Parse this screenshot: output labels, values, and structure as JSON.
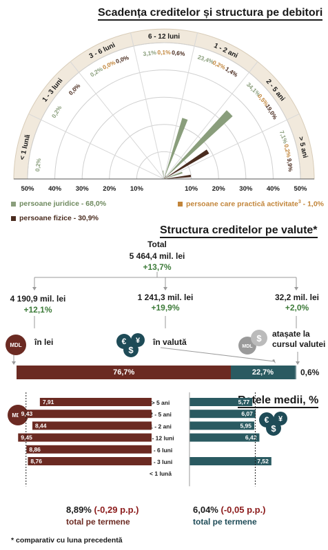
{
  "colors": {
    "green": "#8a9e7c",
    "orange": "#c2853a",
    "dark": "#4a2c1f",
    "mdl_red": "#6b2a22",
    "teal": "#2a5a61",
    "grey": "#9a9a9a",
    "beige": "#f1e9dc"
  },
  "section1": {
    "title": "Scadența creditelor și structura pe debitori",
    "legend": {
      "juridice": "persoane juridice - 68,0%",
      "activitate_prefix": "persoane care practică activitate",
      "activitate_sup": "3",
      "activitate_suffix": " - 1,0%",
      "fizice": "persoane fizice - 30,9%"
    },
    "axis_left": [
      "50%",
      "40%",
      "30%",
      "20%",
      "10%"
    ],
    "axis_right": [
      "10%",
      "20%",
      "30%",
      "40%",
      "50%"
    ]
  },
  "chart_data": [
    {
      "type": "polar-bar",
      "title": "Scadența creditelor și structura pe debitori",
      "categories": [
        "< 1 lună",
        "1 - 3 luni",
        "3 - 6 luni",
        "6 - 12 luni",
        "1 - 2 ani",
        "2 - 5 ani",
        "> 5 ani"
      ],
      "radial_range": [
        0,
        50
      ],
      "series": [
        {
          "name": "persoane juridice - 68,0%",
          "values": [
            0.2,
            0.2,
            0.2,
            3.1,
            23.4,
            34.1,
            7.1
          ],
          "labels": [
            "0,2%",
            "0,2%",
            "0,2%",
            "3,1%",
            "23,4%",
            "34,1%",
            "7,1%"
          ]
        },
        {
          "name": "persoane care practică activitate - 1,0%",
          "values": [
            0,
            0,
            0.0,
            0.1,
            0.2,
            0.5,
            0.2
          ],
          "labels": [
            "",
            "",
            "0,0%",
            "0,1%",
            "0,2%",
            "0,5%",
            "0,2%"
          ]
        },
        {
          "name": "persoane fizice - 30,9%",
          "values": [
            0,
            0.0,
            0.0,
            0.6,
            1.4,
            19.0,
            9.9
          ],
          "labels": [
            "",
            "0,0%",
            "0,0%",
            "0,6%",
            "1,4%",
            "19,0%",
            "9,9%"
          ]
        }
      ]
    },
    {
      "type": "bar",
      "title": "Structura creditelor pe valute*",
      "categories": [
        "în lei",
        "în valută",
        "atașate la cursul valutei"
      ],
      "values": [
        76.7,
        22.7,
        0.6
      ],
      "labels": [
        "76,7%",
        "22,7%",
        "0,6%"
      ]
    },
    {
      "type": "bar",
      "title": "Ratele medii, %",
      "categories": [
        "> 5 ani",
        "2 - 5 ani",
        "1 - 2 ani",
        "6 - 12 luni",
        "3 - 6 luni",
        "1 - 3 luni",
        "< 1 lună"
      ],
      "series": [
        {
          "name": "MDL",
          "values": [
            7.91,
            9.43,
            8.44,
            9.45,
            8.86,
            8.76,
            null
          ],
          "labels": [
            "7,91",
            "9,43",
            "8,44",
            "9,45",
            "8,86",
            "8,76",
            ""
          ]
        },
        {
          "name": "valută",
          "values": [
            5.77,
            6.07,
            5.95,
            6.42,
            null,
            7.52,
            null
          ],
          "labels": [
            "5,77",
            "6,07",
            "5,95",
            "6,42",
            "",
            "7,52",
            ""
          ]
        }
      ],
      "xlim": [
        0,
        10
      ]
    }
  ],
  "section2": {
    "title": "Structura creditelor pe valute*",
    "total_label": "Total",
    "total_value": "5 464,4 mil. lei",
    "total_change": "+13,7%",
    "lei_value": "4 190,9 mil. lei",
    "lei_change": "+12,1%",
    "valuta_value": "1 241,3 mil. lei",
    "valuta_change": "+19,9%",
    "atasate_value": "32,2 mil. lei",
    "atasate_change": "+2,0%",
    "lei_label": "în lei",
    "valuta_label": "în valută",
    "atasate_label_1": "atașate la",
    "atasate_label_2": "cursul valutei",
    "mdl_badge": "MDL",
    "currency_icon": "currency-icon"
  },
  "section3": {
    "title": "Ratele medii, %",
    "mdl_badge": "MDL",
    "total_mdl": "8,89%",
    "total_mdl_change": "(-0,29 p.p.)",
    "total_mdl_label": "total pe termene",
    "total_val": "6,04%",
    "total_val_change": "(-0,05 p.p.)",
    "total_val_label": "total pe termene"
  },
  "footnote": "* comparativ cu luna precedentă"
}
